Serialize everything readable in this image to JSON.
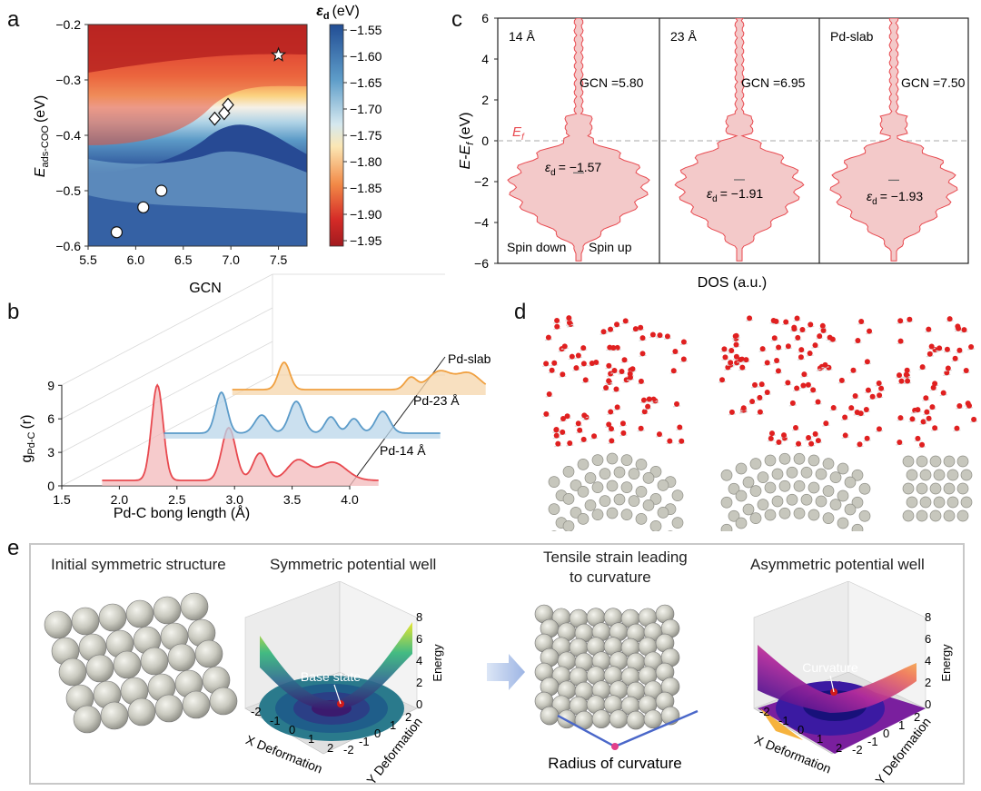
{
  "panels": {
    "a": "a",
    "b": "b",
    "c": "c",
    "d": "d",
    "e": "e"
  },
  "chart_data": [
    {
      "id": "a",
      "type": "heatmap",
      "title": "",
      "xlabel": "GCN",
      "ylabel_main": "E",
      "ylabel_sub": "ads-COO",
      "ylabel_unit": "(eV)",
      "xlim": [
        5.5,
        7.8
      ],
      "ylim": [
        -0.6,
        -0.2
      ],
      "xticks": [
        "5.5",
        "6.0",
        "6.5",
        "7.0",
        "7.5"
      ],
      "yticks": [
        "-0.6",
        "-0.5",
        "-0.4",
        "-0.3",
        "-0.2"
      ],
      "colorbar": {
        "label_main": "ε",
        "label_sub": "d",
        "label_unit": "(eV)",
        "range": [
          -1.95,
          -1.55
        ],
        "ticks": [
          "-1.55",
          "-1.60",
          "-1.65",
          "-1.70",
          "-1.75",
          "-1.80",
          "-1.85",
          "-1.90",
          "-1.95"
        ]
      },
      "points": [
        {
          "marker": "circle",
          "x": 5.8,
          "y": -0.575
        },
        {
          "marker": "circle",
          "x": 6.08,
          "y": -0.53
        },
        {
          "marker": "circle",
          "x": 6.27,
          "y": -0.5
        },
        {
          "marker": "diamond",
          "x": 6.83,
          "y": -0.37
        },
        {
          "marker": "diamond",
          "x": 6.93,
          "y": -0.36
        },
        {
          "marker": "diamond",
          "x": 6.97,
          "y": -0.345
        },
        {
          "marker": "star",
          "x": 7.5,
          "y": -0.255
        }
      ]
    },
    {
      "id": "b",
      "type": "line",
      "xlabel": "Pd-C bong length (Å)",
      "ylabel_main": "g",
      "ylabel_sub": "Pd-C",
      "ylabel_unit": "(r)",
      "xticks": [
        "1.5",
        "2.0",
        "2.5",
        "3.0",
        "3.5",
        "4.0"
      ],
      "yticks": [
        "0",
        "3",
        "6",
        "9"
      ],
      "series": [
        {
          "name": "Pd-14 Å",
          "color": "#e8494f",
          "fill": "#f3b9bb"
        },
        {
          "name": "Pd-23 Å",
          "color": "#5b9bc9",
          "fill": "#b9d5ea"
        },
        {
          "name": "Pd-slab",
          "color": "#f0a040",
          "fill": "#f6d5ab"
        }
      ]
    },
    {
      "id": "c",
      "type": "area",
      "xlabel": "DOS (a.u.)",
      "ylabel": "E-E",
      "ylabel_sub": "f",
      "ylabel_unit": "(eV)",
      "ylim": [
        -6,
        6
      ],
      "yticks": [
        "-6",
        "-4",
        "-2",
        "0",
        "2",
        "4",
        "6"
      ],
      "fermi_label": "E",
      "fermi_sub": "f",
      "spin_down": "Spin down",
      "spin_up": "Spin up",
      "subpanels": [
        {
          "name": "14 Å",
          "gcn": "GCN =5.80",
          "ed": "= -1.57",
          "ed_value": -1.57
        },
        {
          "name": "23 Å",
          "gcn": "GCN =6.95",
          "ed": "= -1.91",
          "ed_value": -1.91
        },
        {
          "name": "Pd-slab",
          "gcn": "GCN =7.50",
          "ed": "= -1.93",
          "ed_value": -1.93
        }
      ]
    }
  ],
  "panel_e": {
    "titles": {
      "initial": "Initial symmetric structure",
      "sym_well": "Symmetric potential well",
      "tensile_1": "Tensile strain leading",
      "tensile_2": "to curvature",
      "asym_well": "Asymmetric potential well"
    },
    "base_state": "Base state",
    "curvature": "Curvature",
    "radius": "Radius of curvature",
    "energy": "Energy",
    "x_def": "X Deformation",
    "y_def": "Y Deformation",
    "z_ticks": [
      "0",
      "2",
      "4",
      "6",
      "8"
    ],
    "x_ticks": [
      "-2",
      "-1",
      "0",
      "1",
      "2"
    ],
    "y_ticks": [
      "-2",
      "-1",
      "0",
      "1",
      "2"
    ]
  }
}
